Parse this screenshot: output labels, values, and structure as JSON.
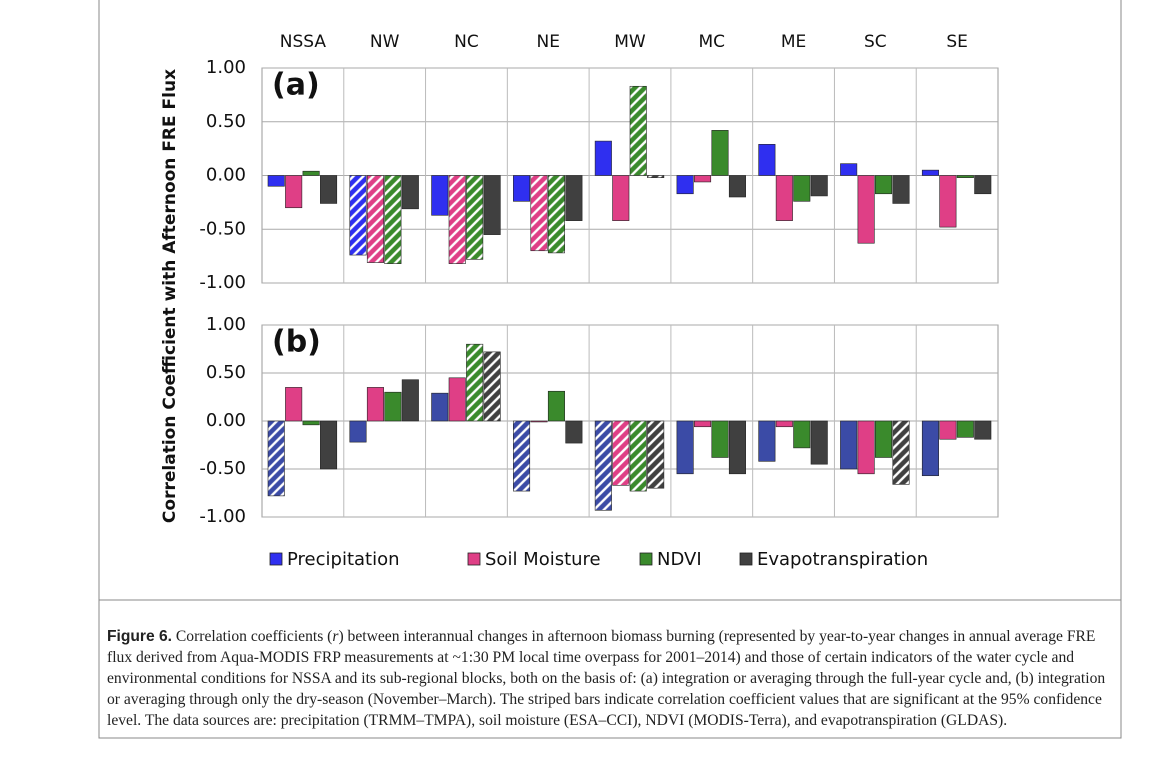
{
  "chart_data": [
    {
      "type": "bar",
      "title": "(a)",
      "ylabel": "Correlation Coefficient  with Afternoon FRE Flux",
      "categories": [
        "NSSA",
        "NW",
        "NC",
        "NE",
        "MW",
        "MC",
        "ME",
        "SC",
        "SE"
      ],
      "ylim": [
        -1,
        1
      ],
      "yticks": [
        {
          "value": -1,
          "label": "-1.00"
        },
        {
          "value": -0.5,
          "label": "-0.50"
        },
        {
          "value": 0,
          "label": "0.00"
        },
        {
          "value": 0.5,
          "label": "0.50"
        },
        {
          "value": 1,
          "label": "1.00"
        }
      ],
      "grid": true,
      "series": [
        {
          "name": "Precipitation",
          "color": "#2f2ff0",
          "values": [
            -0.1,
            -0.74,
            -0.37,
            -0.24,
            0.32,
            -0.17,
            0.29,
            0.11,
            0.05
          ],
          "significant": [
            false,
            true,
            false,
            false,
            false,
            false,
            false,
            false,
            false
          ]
        },
        {
          "name": "Soil Moisture",
          "color": "#df3f86",
          "values": [
            -0.3,
            -0.81,
            -0.82,
            -0.7,
            -0.42,
            -0.06,
            -0.42,
            -0.63,
            -0.48
          ],
          "significant": [
            false,
            true,
            true,
            true,
            false,
            false,
            false,
            false,
            false
          ]
        },
        {
          "name": "NDVI",
          "color": "#3a8a2c",
          "values": [
            0.04,
            -0.82,
            -0.78,
            -0.72,
            0.83,
            0.42,
            -0.24,
            -0.17,
            -0.02
          ],
          "significant": [
            false,
            true,
            true,
            true,
            true,
            false,
            false,
            false,
            false
          ]
        },
        {
          "name": "Evapotranspiration",
          "color": "#404040",
          "values": [
            -0.26,
            -0.31,
            -0.55,
            -0.42,
            -0.02,
            -0.2,
            -0.19,
            -0.26,
            -0.17
          ],
          "significant": [
            false,
            false,
            false,
            false,
            true,
            false,
            false,
            false,
            false
          ]
        }
      ]
    },
    {
      "type": "bar",
      "title": "(b)",
      "ylim": [
        -1,
        1
      ],
      "yticks": [
        {
          "value": -1,
          "label": "-1.00"
        },
        {
          "value": -0.5,
          "label": "-0.50"
        },
        {
          "value": 0,
          "label": "0.00"
        },
        {
          "value": 0.5,
          "label": "0.50"
        },
        {
          "value": 1,
          "label": "1.00"
        }
      ],
      "grid": true,
      "series": [
        {
          "color": "#3b4ba6",
          "values": [
            -0.78,
            -0.22,
            0.29,
            -0.73,
            -0.93,
            -0.55,
            -0.42,
            -0.5,
            -0.57
          ],
          "significant": [
            true,
            false,
            false,
            true,
            true,
            false,
            false,
            false,
            false
          ]
        },
        {
          "color": "#df3f86",
          "values": [
            0.35,
            0.35,
            0.45,
            -0.01,
            -0.67,
            -0.06,
            -0.06,
            -0.55,
            -0.19
          ],
          "significant": [
            false,
            false,
            false,
            false,
            true,
            false,
            false,
            false,
            false
          ]
        },
        {
          "color": "#3a8a2c",
          "values": [
            -0.04,
            0.3,
            0.8,
            0.31,
            -0.73,
            -0.38,
            -0.28,
            -0.38,
            -0.17
          ],
          "significant": [
            false,
            false,
            true,
            false,
            true,
            false,
            false,
            false,
            false
          ]
        },
        {
          "color": "#404040",
          "values": [
            -0.5,
            0.43,
            0.72,
            -0.23,
            -0.7,
            -0.55,
            -0.45,
            -0.66,
            -0.19
          ],
          "significant": [
            false,
            false,
            true,
            false,
            true,
            false,
            false,
            true,
            false
          ]
        }
      ]
    }
  ],
  "caption": {
    "label": "Figure 6.",
    "parts": [
      "Correlation coefficients (",
      "r",
      ") between interannual changes in afternoon biomass burning (represented by year-to-year changes in annual average FRE flux derived from Aqua-MODIS FRP measurements at ~1:30 PM local time overpass for 2001–2014) and those of certain indicators of the water cycle and environmental conditions for NSSA and its sub-regional blocks, both on the basis of: (a) integration or averaging through the full-year cycle and, (b) integration or averaging through only the dry-season (November–March). The striped bars indicate correlation coefficient values that are significant at the 95% confidence level. The data sources are: precipitation (TRMM–TMPA), soil moisture (ESA–CCI), NDVI (MODIS-Terra), and evapotranspiration (GLDAS)."
    ]
  }
}
